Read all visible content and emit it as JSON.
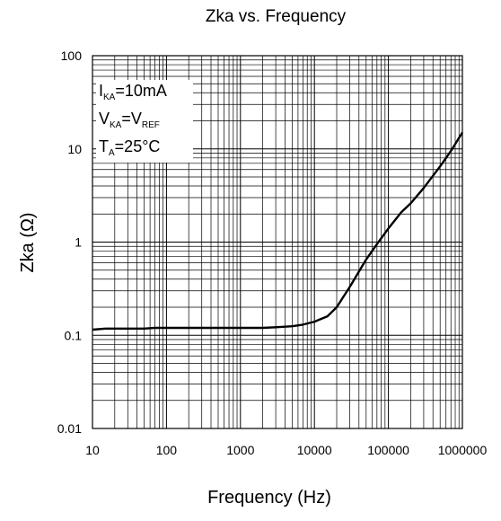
{
  "chart_data": {
    "type": "line",
    "title": "Zka vs. Frequency",
    "xlabel": "Frequency (Hz)",
    "ylabel": "Zka (Ω)",
    "x_scale": "log",
    "y_scale": "log",
    "xlim": [
      10,
      1000000
    ],
    "ylim": [
      0.01,
      100
    ],
    "grid": true,
    "x_ticks": [
      "10",
      "100",
      "1000",
      "10000",
      "100000",
      "1000000"
    ],
    "y_ticks": [
      "0.01",
      "0.1",
      "1",
      "10",
      "100"
    ],
    "annotation": {
      "lines": [
        {
          "main": "I",
          "sub": "KA",
          "rest": "=10mA"
        },
        {
          "main": "V",
          "sub": "KA",
          "rest": "=V",
          "sub2": "REF"
        },
        {
          "main": "T",
          "sub": "A",
          "rest": "=25°C"
        }
      ],
      "position": "top-left"
    },
    "series": [
      {
        "x": [
          10,
          15,
          20,
          30,
          50,
          70,
          100,
          150,
          200,
          300,
          500,
          1000,
          2000,
          3000,
          5000,
          7000,
          10000,
          15000,
          20000,
          30000,
          50000,
          70000,
          100000,
          150000,
          200000,
          300000,
          500000,
          700000,
          1000000
        ],
        "y": [
          0.115,
          0.118,
          0.118,
          0.118,
          0.118,
          0.12,
          0.12,
          0.12,
          0.12,
          0.12,
          0.12,
          0.12,
          0.12,
          0.122,
          0.125,
          0.13,
          0.14,
          0.16,
          0.2,
          0.33,
          0.65,
          0.95,
          1.4,
          2.1,
          2.6,
          3.8,
          6.5,
          9.5,
          15
        ]
      }
    ]
  }
}
